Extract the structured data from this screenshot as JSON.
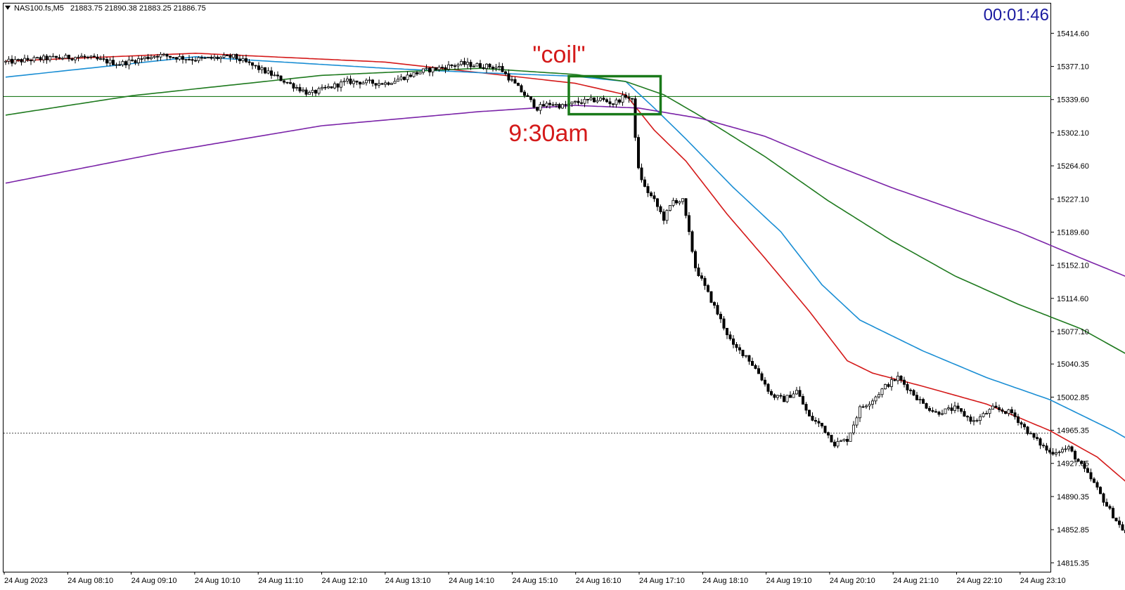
{
  "header": {
    "symbol_label": "NAS100.fs,M5",
    "ohlc_label": "21883.75 21890.38 21883.25 21886.75",
    "timer": "00:01:46"
  },
  "chart_data": {
    "type": "candlestick",
    "timeframe": "M5",
    "ylim": [
      14800,
      15440
    ],
    "y_ticks": [
      15414.6,
      15377.1,
      15339.6,
      15302.1,
      15264.6,
      15227.1,
      15189.6,
      15152.1,
      15114.6,
      15077.1,
      15040.35,
      15002.85,
      14965.35,
      14927.85,
      14890.35,
      14852.85,
      14815.35
    ],
    "x_tick_labels": [
      "24 Aug 2023",
      "24 Aug 08:10",
      "24 Aug 09:10",
      "24 Aug 10:10",
      "24 Aug 11:10",
      "24 Aug 12:10",
      "24 Aug 13:10",
      "24 Aug 14:10",
      "24 Aug 15:10",
      "24 Aug 16:10",
      "24 Aug 17:10",
      "24 Aug 18:10",
      "24 Aug 19:10",
      "24 Aug 20:10",
      "24 Aug 21:10",
      "24 Aug 22:10",
      "24 Aug 23:10"
    ],
    "close_path": [
      [
        0,
        15382
      ],
      [
        12,
        15386
      ],
      [
        24,
        15388
      ],
      [
        36,
        15380
      ],
      [
        48,
        15390
      ],
      [
        60,
        15385
      ],
      [
        72,
        15388
      ],
      [
        84,
        15368
      ],
      [
        96,
        15346
      ],
      [
        108,
        15360
      ],
      [
        120,
        15358
      ],
      [
        132,
        15372
      ],
      [
        144,
        15380
      ],
      [
        156,
        15376
      ],
      [
        164,
        15345
      ],
      [
        168,
        15330
      ],
      [
        172,
        15335
      ],
      [
        176,
        15332
      ],
      [
        180,
        15336
      ],
      [
        184,
        15338
      ],
      [
        188,
        15340
      ],
      [
        192,
        15335
      ],
      [
        196,
        15344
      ],
      [
        198,
        15338
      ],
      [
        200,
        15260
      ],
      [
        202,
        15240
      ],
      [
        205,
        15225
      ],
      [
        208,
        15205
      ],
      [
        211,
        15225
      ],
      [
        214,
        15225
      ],
      [
        218,
        15150
      ],
      [
        222,
        15120
      ],
      [
        226,
        15090
      ],
      [
        230,
        15060
      ],
      [
        234,
        15050
      ],
      [
        238,
        15030
      ],
      [
        242,
        15005
      ],
      [
        246,
        15000
      ],
      [
        250,
        15010
      ],
      [
        254,
        14980
      ],
      [
        258,
        14970
      ],
      [
        262,
        14950
      ],
      [
        266,
        14955
      ],
      [
        270,
        14990
      ],
      [
        274,
        15000
      ],
      [
        278,
        15015
      ],
      [
        282,
        15025
      ],
      [
        286,
        15010
      ],
      [
        290,
        14995
      ],
      [
        294,
        14985
      ],
      [
        300,
        14990
      ],
      [
        306,
        14975
      ],
      [
        312,
        14990
      ],
      [
        318,
        14985
      ],
      [
        324,
        14960
      ],
      [
        330,
        14940
      ],
      [
        336,
        14945
      ],
      [
        340,
        14925
      ],
      [
        344,
        14905
      ],
      [
        348,
        14880
      ],
      [
        352,
        14858
      ],
      [
        356,
        14840
      ],
      [
        360,
        14820
      ],
      [
        364,
        14825
      ]
    ],
    "series": [
      {
        "name": "",
        "color": "#d41a1a",
        "values": [
          [
            0,
            15383
          ],
          [
            60,
            15392
          ],
          [
            120,
            15382
          ],
          [
            150,
            15370
          ],
          [
            180,
            15358
          ],
          [
            196,
            15345
          ],
          [
            205,
            15305
          ],
          [
            215,
            15270
          ],
          [
            228,
            15210
          ],
          [
            240,
            15160
          ],
          [
            254,
            15100
          ],
          [
            266,
            15044
          ],
          [
            274,
            15030
          ],
          [
            290,
            15015
          ],
          [
            310,
            14995
          ],
          [
            330,
            14965
          ],
          [
            345,
            14935
          ],
          [
            358,
            14895
          ],
          [
            366,
            14868
          ]
        ]
      },
      {
        "name": "",
        "color": "#1a8ed4",
        "values": [
          [
            0,
            15365
          ],
          [
            60,
            15388
          ],
          [
            120,
            15375
          ],
          [
            150,
            15370
          ],
          [
            180,
            15366
          ],
          [
            196,
            15360
          ],
          [
            205,
            15330
          ],
          [
            215,
            15295
          ],
          [
            230,
            15240
          ],
          [
            245,
            15190
          ],
          [
            258,
            15130
          ],
          [
            270,
            15090
          ],
          [
            290,
            15055
          ],
          [
            310,
            15025
          ],
          [
            330,
            15000
          ],
          [
            350,
            14965
          ],
          [
            366,
            14932
          ]
        ]
      },
      {
        "name": "",
        "color": "#1f7a1f",
        "values": [
          [
            0,
            15322
          ],
          [
            40,
            15344
          ],
          [
            100,
            15367
          ],
          [
            150,
            15375
          ],
          [
            180,
            15368
          ],
          [
            196,
            15360
          ],
          [
            208,
            15345
          ],
          [
            220,
            15320
          ],
          [
            240,
            15275
          ],
          [
            260,
            15225
          ],
          [
            280,
            15180
          ],
          [
            300,
            15140
          ],
          [
            320,
            15108
          ],
          [
            340,
            15080
          ],
          [
            355,
            15050
          ],
          [
            366,
            15018
          ]
        ]
      },
      {
        "name": "",
        "color": "#7b24a8",
        "values": [
          [
            0,
            15245
          ],
          [
            50,
            15280
          ],
          [
            100,
            15310
          ],
          [
            150,
            15326
          ],
          [
            180,
            15333
          ],
          [
            200,
            15330
          ],
          [
            220,
            15318
          ],
          [
            240,
            15298
          ],
          [
            260,
            15268
          ],
          [
            280,
            15240
          ],
          [
            300,
            15215
          ],
          [
            320,
            15190
          ],
          [
            340,
            15160
          ],
          [
            355,
            15138
          ],
          [
            366,
            15119
          ]
        ]
      }
    ],
    "levels": [
      {
        "price": 15343,
        "color": "#1f7a1f",
        "style": "solid"
      },
      {
        "price": 14962,
        "color": "#444444",
        "style": "dotted"
      }
    ],
    "box": {
      "x_range": [
        178,
        207
      ],
      "price_range": [
        15323,
        15366
      ],
      "color": "#1a7a1a"
    },
    "annotations": [
      {
        "text": "\"coil\"",
        "color": "#d41a1a"
      },
      {
        "text": "9:30am",
        "color": "#d41a1a"
      }
    ],
    "bull_color": "#ffffff",
    "bear_color": "#000000"
  }
}
